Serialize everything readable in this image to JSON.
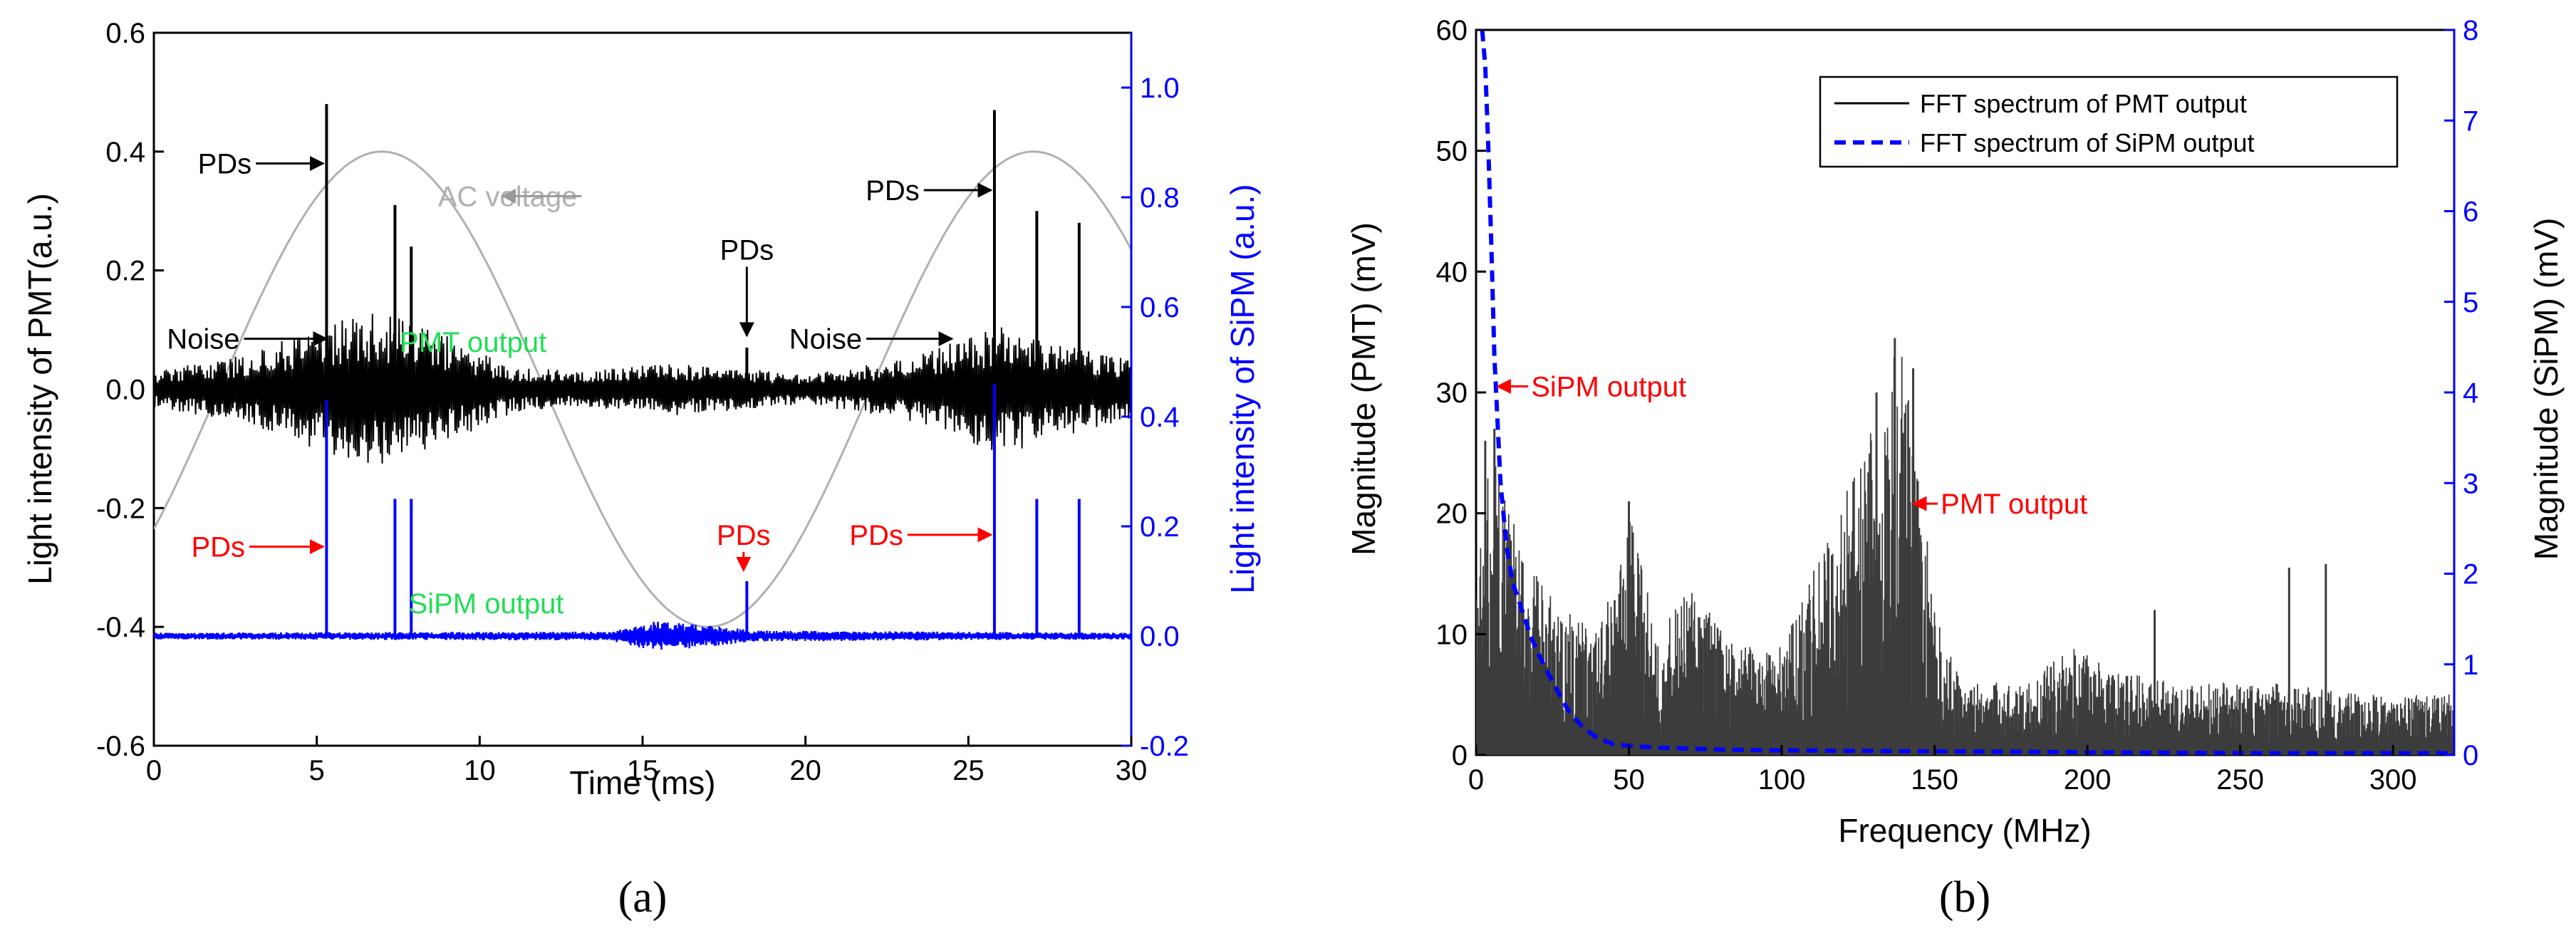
{
  "colors": {
    "pmt": "#000000",
    "sipm": "#0000ff",
    "ac": "#b0b0b0",
    "pmt_label": "#22dd55",
    "red": "#ff0000",
    "fft_pmt": "#3c3c3c",
    "fft_sipm": "#0000ff"
  },
  "chart_data": [
    {
      "id": "a",
      "type": "line",
      "caption": "(a)",
      "xlabel": "Time (ms)",
      "ylabel": "Light intensity of PMT(a.u.)",
      "ylabel_right": "Light intensity of SiPM (a.u.)",
      "xlim": [
        0,
        30
      ],
      "ylim": [
        -0.6,
        0.6
      ],
      "ylim_right": [
        -0.2,
        1.1
      ],
      "xticks": [
        0,
        5,
        10,
        15,
        20,
        25,
        30
      ],
      "xtick_labels": [
        "0",
        "5",
        "10",
        "15",
        "20",
        "25",
        "30"
      ],
      "yticks": [
        -0.6,
        -0.4,
        -0.2,
        0.0,
        0.2,
        0.4,
        0.6
      ],
      "ytick_labels": [
        "-0.6",
        "-0.4",
        "-0.2",
        "0.0",
        "0.2",
        "0.4",
        "0.6"
      ],
      "yticks_right": [
        -0.2,
        0.0,
        0.2,
        0.4,
        0.6,
        0.8,
        1.0
      ],
      "ytick_labels_right": [
        "-0.2",
        "0.0",
        "0.2",
        "0.4",
        "0.6",
        "0.8",
        "1.0"
      ],
      "series": [
        {
          "name": "AC voltage",
          "axis": "left",
          "kind": "sine",
          "amplitude": 0.4,
          "period_ms": 20,
          "peak_at_ms": 7
        },
        {
          "name": "PMT output",
          "axis": "left",
          "kind": "noise",
          "envelope": [
            [
              0,
              0.03
            ],
            [
              3,
              0.06
            ],
            [
              5,
              0.11
            ],
            [
              7,
              0.13
            ],
            [
              9,
              0.09
            ],
            [
              11,
              0.04
            ],
            [
              13,
              0.03
            ],
            [
              16,
              0.045
            ],
            [
              18,
              0.035
            ],
            [
              20,
              0.025
            ],
            [
              23,
              0.05
            ],
            [
              26,
              0.11
            ],
            [
              28,
              0.08
            ],
            [
              30,
              0.05
            ]
          ]
        },
        {
          "name": "PMT PD spikes",
          "axis": "left",
          "kind": "spikes",
          "x": [
            5.3,
            7.4,
            7.9,
            18.2,
            25.8,
            27.1,
            28.4
          ],
          "y": [
            0.48,
            0.31,
            0.24,
            0.07,
            0.47,
            0.3,
            0.28
          ]
        },
        {
          "name": "SiPM output",
          "axis": "right",
          "kind": "noise",
          "baseline": 0.0,
          "envelope": [
            [
              0,
              0.006
            ],
            [
              14,
              0.008
            ],
            [
              15.5,
              0.03
            ],
            [
              17,
              0.02
            ],
            [
              18.5,
              0.01
            ],
            [
              30,
              0.006
            ]
          ]
        },
        {
          "name": "SiPM PD spikes",
          "axis": "right",
          "kind": "spikes",
          "x": [
            5.3,
            7.4,
            7.9,
            18.2,
            25.8,
            27.1,
            28.4
          ],
          "y": [
            0.43,
            0.25,
            0.25,
            0.1,
            0.46,
            0.25,
            0.25
          ]
        }
      ],
      "annotations": [
        {
          "text": "PDs",
          "color": "black",
          "x": 3.0,
          "y": 0.38,
          "arrow_to": [
            5.2,
            0.38
          ],
          "axis": "left"
        },
        {
          "text": "AC voltage",
          "color": "ac",
          "x": 13.0,
          "y": 0.325,
          "arrow_to": [
            10.7,
            0.325
          ],
          "axis": "left",
          "align": "end"
        },
        {
          "text": "PDs",
          "color": "black",
          "x": 18.2,
          "y": 0.235,
          "arrow_to": [
            18.2,
            0.09
          ],
          "axis": "left",
          "align": "middle"
        },
        {
          "text": "PDs",
          "color": "black",
          "x": 23.5,
          "y": 0.335,
          "arrow_to": [
            25.7,
            0.335
          ],
          "axis": "left"
        },
        {
          "text": "Noise",
          "color": "black",
          "x": 0.4,
          "y": 0.085,
          "arrow_to": [
            5.3,
            0.085
          ],
          "axis": "left",
          "align": "start"
        },
        {
          "text": "PMT output",
          "color": "pmt_label",
          "x": 9.8,
          "y": 0.08,
          "axis": "left",
          "align": "middle"
        },
        {
          "text": "Noise",
          "color": "black",
          "x": 19.5,
          "y": 0.085,
          "arrow_to": [
            24.5,
            0.085
          ],
          "axis": "left",
          "align": "start"
        },
        {
          "text": "PDs",
          "color": "red",
          "x": 2.8,
          "y": -0.265,
          "arrow_to": [
            5.2,
            -0.265
          ],
          "axis": "left"
        },
        {
          "text": "PDs",
          "color": "red",
          "x": 18.1,
          "y": -0.245,
          "arrow_to": [
            18.1,
            -0.305
          ],
          "axis": "left",
          "align": "middle"
        },
        {
          "text": "PDs",
          "color": "red",
          "x": 23.0,
          "y": -0.245,
          "arrow_to": [
            25.7,
            -0.245
          ],
          "axis": "left"
        },
        {
          "text": "SiPM output",
          "color": "pmt_label",
          "x": 10.2,
          "y": -0.36,
          "axis": "left",
          "align": "middle"
        }
      ]
    },
    {
      "id": "b",
      "type": "line",
      "caption": "(b)",
      "xlabel": "Frequency (MHz)",
      "ylabel": "Magnitude (PMT) (mV)",
      "ylabel_right": "Magnitude (SiPM) (mV)",
      "xlim": [
        0,
        320
      ],
      "ylim": [
        0,
        60
      ],
      "ylim_right": [
        0,
        8
      ],
      "xticks": [
        0,
        50,
        100,
        150,
        200,
        250,
        300
      ],
      "xtick_labels": [
        "0",
        "50",
        "100",
        "150",
        "200",
        "250",
        "300"
      ],
      "yticks": [
        0,
        10,
        20,
        30,
        40,
        50,
        60
      ],
      "ytick_labels": [
        "0",
        "10",
        "20",
        "30",
        "40",
        "50",
        "60"
      ],
      "yticks_right": [
        0,
        1,
        2,
        3,
        4,
        5,
        6,
        7,
        8
      ],
      "ytick_labels_right": [
        "0",
        "1",
        "2",
        "3",
        "4",
        "5",
        "6",
        "7",
        "8"
      ],
      "legend": {
        "placement": "top-right",
        "entries": [
          {
            "label": "FFT spectrum of PMT output",
            "style": "solid",
            "color": "pmt"
          },
          {
            "label": "FFT spectrum of SiPM output",
            "style": "dashed",
            "color": "sipm"
          }
        ]
      },
      "series": [
        {
          "name": "FFT spectrum of PMT output",
          "axis": "left",
          "kind": "spectrum",
          "envelope": [
            [
              0,
              14
            ],
            [
              5,
              26
            ],
            [
              10,
              21
            ],
            [
              15,
              17
            ],
            [
              25,
              13
            ],
            [
              40,
              10
            ],
            [
              50,
              20
            ],
            [
              60,
              10
            ],
            [
              70,
              14
            ],
            [
              85,
              9
            ],
            [
              100,
              9
            ],
            [
              115,
              18
            ],
            [
              130,
              28
            ],
            [
              137,
              34
            ],
            [
              140,
              33
            ],
            [
              145,
              24
            ],
            [
              150,
              12
            ],
            [
              160,
              6
            ],
            [
              180,
              6
            ],
            [
              195,
              9
            ],
            [
              210,
              7
            ],
            [
              230,
              6
            ],
            [
              260,
              6
            ],
            [
              290,
              5
            ],
            [
              320,
              5
            ]
          ],
          "peaks": [
            {
              "x": 137,
              "y": 34.5
            },
            {
              "x": 143,
              "y": 32
            },
            {
              "x": 131,
              "y": 30
            },
            {
              "x": 50,
              "y": 21
            },
            {
              "x": 222,
              "y": 12
            },
            {
              "x": 266,
              "y": 15.5
            },
            {
              "x": 278,
              "y": 15.8
            },
            {
              "x": 3,
              "y": 26
            },
            {
              "x": 6,
              "y": 27
            }
          ]
        },
        {
          "name": "FFT spectrum of SiPM output",
          "axis": "right",
          "kind": "curve",
          "x": [
            2,
            3,
            4,
            5,
            6,
            8,
            10,
            12,
            15,
            18,
            22,
            26,
            30,
            35,
            40,
            45,
            50,
            60,
            80,
            100,
            150,
            200,
            250,
            320
          ],
          "y": [
            8.0,
            7.6,
            6.7,
            5.6,
            4.4,
            3.0,
            2.3,
            1.9,
            1.6,
            1.3,
            1.0,
            0.75,
            0.5,
            0.3,
            0.18,
            0.12,
            0.1,
            0.08,
            0.06,
            0.05,
            0.04,
            0.03,
            0.02,
            0.02
          ]
        }
      ],
      "annotations": [
        {
          "text": "SiPM output",
          "color": "red",
          "x": 18,
          "y": 30.5,
          "arrow_to": [
            7,
            30.5
          ],
          "axis": "left",
          "align": "start"
        },
        {
          "text": "PMT output",
          "color": "red",
          "x": 152,
          "y": 20.8,
          "arrow_to": [
            143,
            20.8
          ],
          "axis": "left",
          "align": "start"
        }
      ]
    }
  ]
}
